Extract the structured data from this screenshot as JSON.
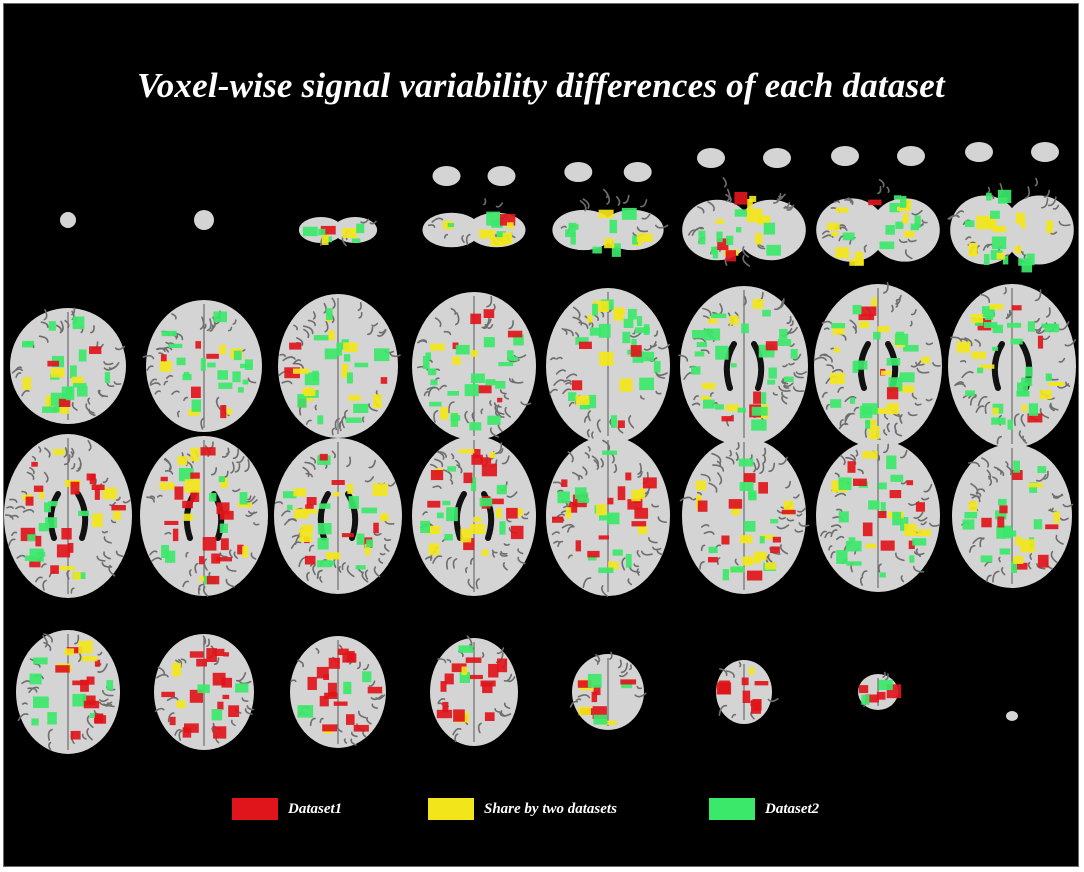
{
  "figure": {
    "title": "Voxel-wise signal variability differences of each dataset"
  },
  "colors": {
    "background": "#000000",
    "dataset1": "#e0151b",
    "shared": "#f2e61a",
    "dataset2": "#3ce86a",
    "cortex": "#d4d4d4",
    "sulci": "#6e6e6e"
  },
  "legend": [
    {
      "label": "Dataset1",
      "color": "#e0151b"
    },
    {
      "label": "Share by two datasets",
      "color": "#f2e61a"
    },
    {
      "label": "Dataset2",
      "color": "#3ce86a"
    }
  ],
  "slices": {
    "rows": 4,
    "columns": 8,
    "description_order": "axial slices, inferior to superior, left-to-right then top-to-bottom"
  }
}
